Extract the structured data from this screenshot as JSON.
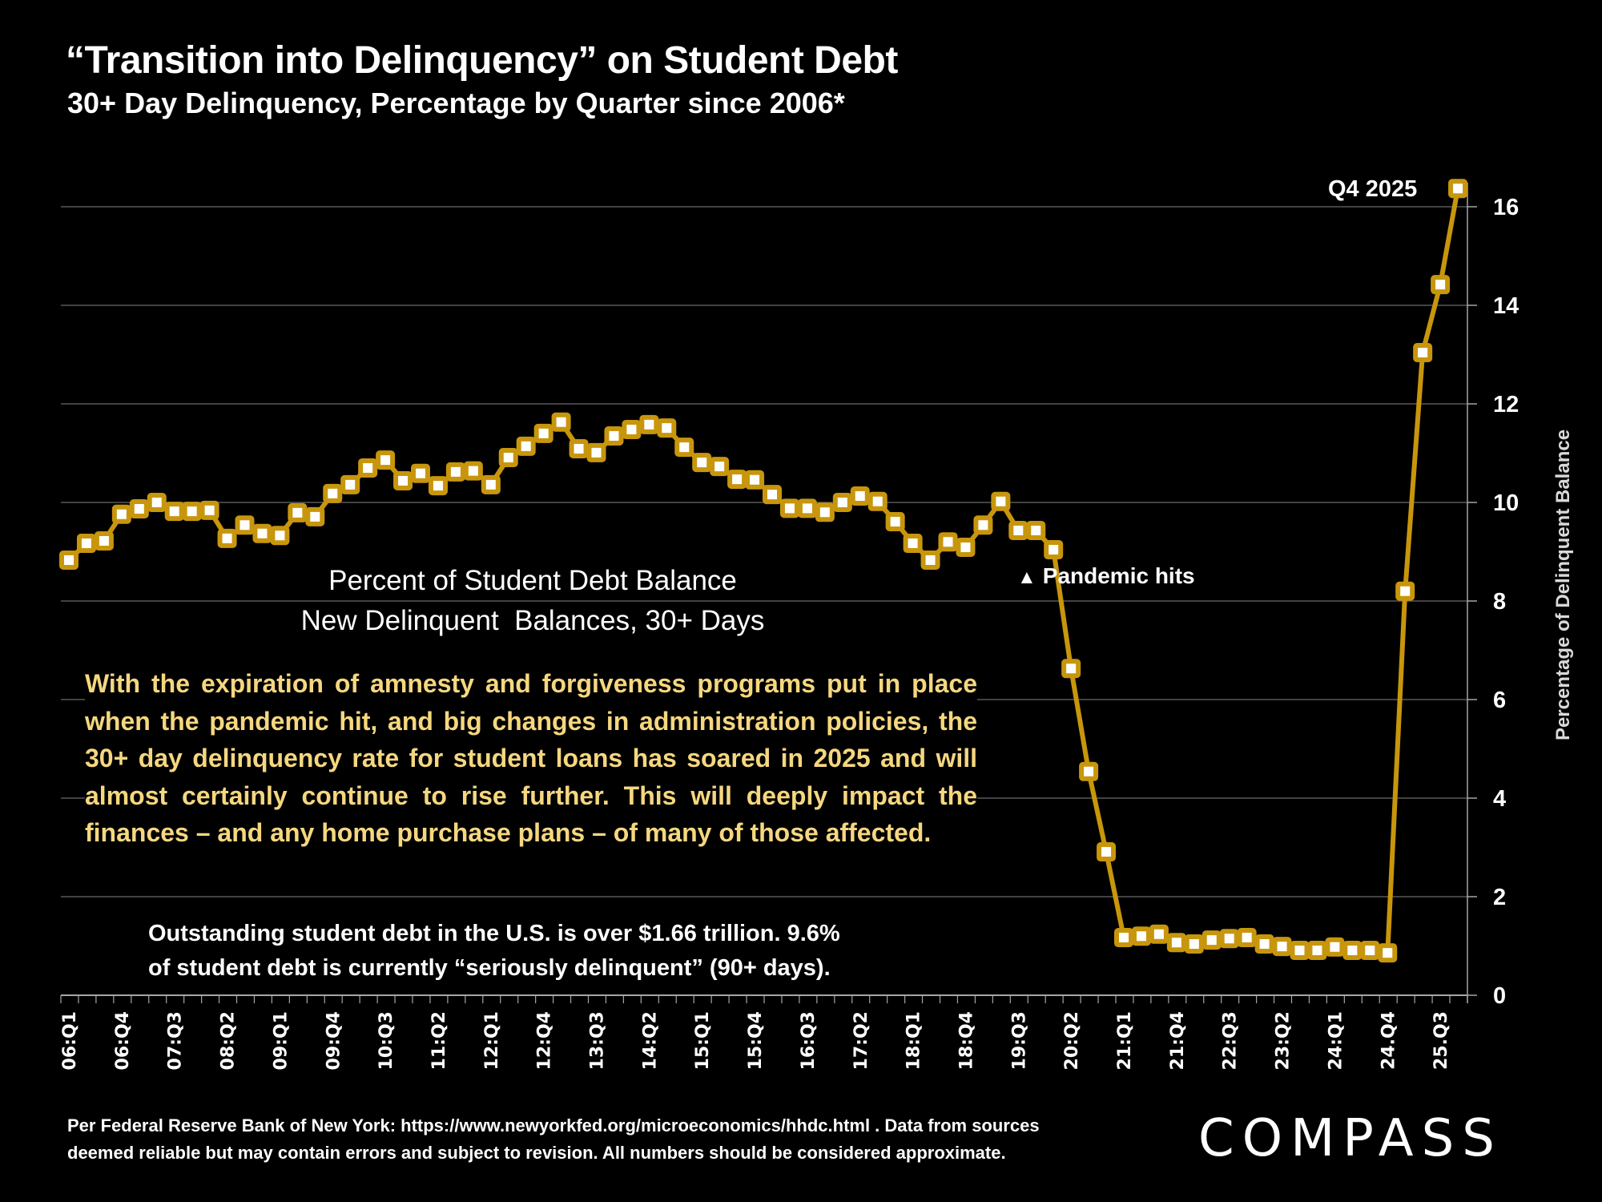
{
  "header": {
    "title": "“Transition into Delinquency” on Student Debt",
    "subtitle": "30+ Day Delinquency, Percentage by Quarter since 2006*"
  },
  "annotations": {
    "series_title_line1": "Percent of Student Debt Balance",
    "series_title_line2": "New Delinquent  Balances, 30+ Days",
    "commentary": "With the expiration of amnesty and forgiveness programs put in place when the pandemic hit, and big changes in administration policies, the 30+ day delinquency rate for student loans has soared in 2025 and will almost certainly continue to rise further. This will deeply impact the finances – and any home purchase plans – of many of those affected.",
    "note_line1": "Outstanding student debt in the U.S. is over $1.66 trillion. 9.6%",
    "note_line2": "of student debt is currently “seriously delinquent” (90+ days).",
    "pandemic_marker": "▲",
    "pandemic_label": "Pandemic hits",
    "last_point_label": "Q4 2025"
  },
  "footer": {
    "source_line1": "Per Federal Reserve Bank of New York: https://www.newyorkfed.org/microeconomics/hhdc.html . Data from sources",
    "source_line2": "deemed reliable but may contain errors and subject to revision. All numbers should be considered approximate.",
    "logo": "COMPASS"
  },
  "colors": {
    "background": "#000000",
    "line": "#C8960C",
    "marker_fill": "#FFFFFF",
    "gridline": "#595959",
    "axis": "#A6A6A6",
    "commentary_text": "#F5D77F"
  },
  "chart_data": {
    "type": "line",
    "title": "“Transition into Delinquency” on Student Debt",
    "subtitle": "30+ Day Delinquency, Percentage by Quarter since 2006*",
    "xlabel": "",
    "ylabel": "Percentage of Delinquent Balance",
    "y_axis_side": "right",
    "ylim": [
      0,
      16
    ],
    "yticks": [
      0,
      2,
      4,
      6,
      8,
      10,
      12,
      14,
      16
    ],
    "grid": true,
    "x_tick_labels": [
      "06:Q1",
      "06:Q4",
      "07:Q3",
      "08:Q2",
      "09:Q1",
      "09:Q4",
      "10:Q3",
      "11:Q2",
      "12:Q1",
      "12:Q4",
      "13:Q3",
      "14:Q2",
      "15:Q1",
      "15:Q4",
      "16:Q3",
      "17:Q2",
      "18:Q1",
      "18:Q4",
      "19:Q3",
      "20:Q2",
      "21:Q1",
      "21:Q4",
      "22:Q3",
      "23:Q2",
      "24:Q1",
      "24.Q4",
      "25.Q3"
    ],
    "x_tick_every": 3,
    "start_year": 2006,
    "series": [
      {
        "name": "New Delinquent Balances, 30+ Days (% of Student Debt Balance)",
        "values": [
          8.83,
          9.17,
          9.22,
          9.76,
          9.87,
          10.0,
          9.82,
          9.82,
          9.84,
          9.27,
          9.54,
          9.37,
          9.33,
          9.79,
          9.71,
          10.18,
          10.36,
          10.7,
          10.86,
          10.44,
          10.59,
          10.34,
          10.62,
          10.64,
          10.36,
          10.91,
          11.14,
          11.4,
          11.63,
          11.09,
          11.01,
          11.35,
          11.48,
          11.58,
          11.51,
          11.12,
          10.81,
          10.73,
          10.47,
          10.46,
          10.16,
          9.88,
          9.88,
          9.8,
          10.0,
          10.13,
          10.02,
          9.61,
          9.17,
          8.83,
          9.2,
          9.09,
          9.54,
          10.02,
          9.43,
          9.43,
          9.04,
          6.63,
          4.54,
          2.91,
          1.17,
          1.2,
          1.24,
          1.07,
          1.04,
          1.12,
          1.15,
          1.17,
          1.04,
          0.99,
          0.91,
          0.91,
          0.98,
          0.91,
          0.91,
          0.86,
          8.2,
          13.04,
          14.42,
          16.37
        ]
      }
    ],
    "annotations": [
      {
        "text": "Pandemic hits",
        "at": "20:Q1"
      },
      {
        "text": "Q4 2025",
        "at": "25:Q4"
      }
    ]
  }
}
